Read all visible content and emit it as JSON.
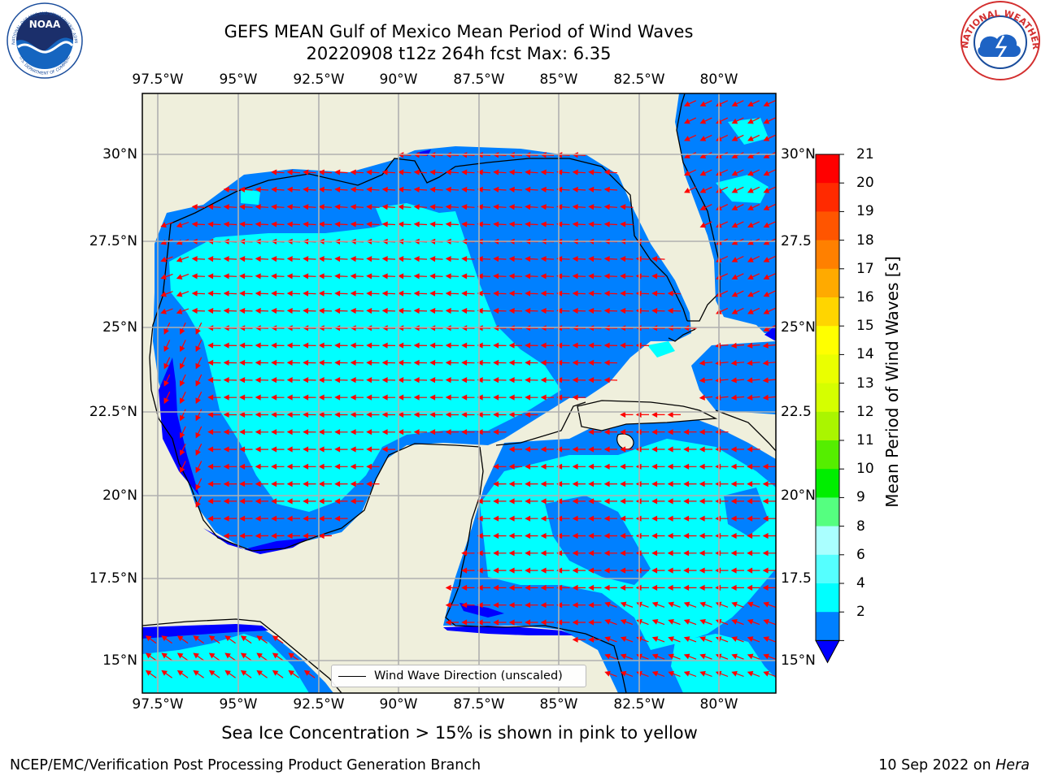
{
  "title_line1": "GEFS MEAN Gulf of Mexico Mean Period of Wind Waves",
  "title_line2": "20220908 t12z 264h fcst   Max: 6.35",
  "map": {
    "lon_ticks": [
      "97.5°W",
      "95°W",
      "92.5°W",
      "90°W",
      "87.5°W",
      "85°W",
      "82.5°W",
      "80°W"
    ],
    "lat_ticks_left": [
      "30°N",
      "27.5°N",
      "25°N",
      "22.5°N",
      "20°N",
      "17.5°N",
      "15°N"
    ],
    "lat_ticks_right": [
      "30°N",
      "27.5",
      "25°N",
      "22.5",
      "20°N",
      "17.5",
      "15°N"
    ],
    "land_color": "#efefdc",
    "arrow_color": "#ff0000",
    "legend_label": "Wind Wave Direction (unscaled)"
  },
  "colorbar": {
    "title": "Mean Period of Wind Waves [s]",
    "labels": [
      "21",
      "20",
      "19",
      "18",
      "17",
      "16",
      "15",
      "14",
      "13",
      "12",
      "11",
      "10",
      "9",
      "8",
      "6",
      "4",
      "2"
    ],
    "colors": [
      "#ff0000",
      "#ff2a00",
      "#ff5500",
      "#ff8000",
      "#ffaa00",
      "#ffd500",
      "#ffff00",
      "#eaff00",
      "#d5ff00",
      "#aaf500",
      "#55ee00",
      "#00ee00",
      "#55ff80",
      "#aaffff",
      "#55ffff",
      "#00ffff",
      "#0080ff"
    ],
    "under_color": "#0000ff"
  },
  "bottom_note": "Sea Ice Concentration > 15% is shown in pink to yellow",
  "footer_left": "NCEP/EMC/Verification Post Processing Product Generation Branch",
  "footer_right_text": "10 Sep 2022 on",
  "footer_right_host": "Hera",
  "logos": {
    "noaa_text": "NOAA",
    "noaa_ring": "NATIONAL OCEANIC AND ATMOSPHERIC ADMINISTRATION",
    "noaa_ring_bottom": "U.S. DEPARTMENT OF COMMERCE",
    "nws_ring": "NATIONAL WEATHER SERVICE"
  }
}
